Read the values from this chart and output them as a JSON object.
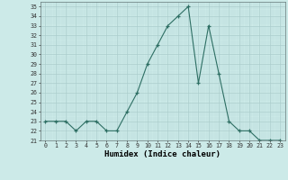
{
  "x": [
    0,
    1,
    2,
    3,
    4,
    5,
    6,
    7,
    8,
    9,
    10,
    11,
    12,
    13,
    14,
    15,
    16,
    17,
    18,
    19,
    20,
    21,
    22,
    23
  ],
  "y": [
    23,
    23,
    23,
    22,
    23,
    23,
    22,
    22,
    24,
    26,
    29,
    31,
    33,
    34,
    35,
    27,
    33,
    28,
    23,
    22,
    22,
    21,
    21,
    21
  ],
  "line_color": "#2d6e63",
  "bg_color": "#cceae8",
  "grid_major_color": "#aacccc",
  "grid_minor_color": "#bbdddd",
  "xlabel": "Humidex (Indice chaleur)",
  "ylim": [
    21,
    35.5
  ],
  "xlim": [
    -0.5,
    23.5
  ],
  "yticks": [
    21,
    22,
    23,
    24,
    25,
    26,
    27,
    28,
    29,
    30,
    31,
    32,
    33,
    34,
    35
  ],
  "xtick_labels": [
    "0",
    "1",
    "2",
    "3",
    "4",
    "5",
    "6",
    "7",
    "8",
    "9",
    "10",
    "11",
    "12",
    "13",
    "14",
    "15",
    "16",
    "17",
    "18",
    "19",
    "20",
    "21",
    "22",
    "23"
  ]
}
